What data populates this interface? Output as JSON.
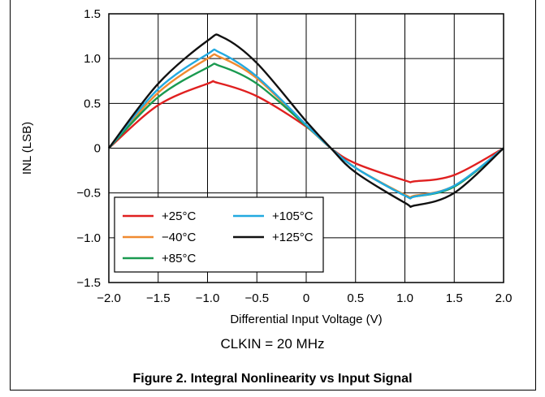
{
  "chart_data": {
    "type": "line",
    "xlabel": "Differential Input Voltage (V)",
    "ylabel": "INL (LSB)",
    "xlim": [
      -2.0,
      2.0
    ],
    "ylim": [
      -1.5,
      1.5
    ],
    "x_ticks": [
      "−2.0",
      "−1.5",
      "−1.0",
      "−0.5",
      "0",
      "0.5",
      "1.0",
      "1.5",
      "2.0"
    ],
    "y_ticks": [
      "1.5",
      "1.0",
      "0.5",
      "0",
      "−0.5",
      "−1.0",
      "−1.5"
    ],
    "grid": true,
    "legend_position": "bottom-left",
    "series": [
      {
        "name": "+25°C",
        "color": "#e02020",
        "x": [
          -2.0,
          -1.5,
          -1.0,
          -0.9,
          -0.5,
          0.0,
          0.25,
          0.5,
          1.0,
          1.1,
          1.5,
          2.0
        ],
        "y": [
          0.0,
          0.48,
          0.72,
          0.73,
          0.58,
          0.24,
          0.0,
          -0.17,
          -0.36,
          -0.37,
          -0.3,
          0.0
        ]
      },
      {
        "name": "−40°C",
        "color": "#f08a30",
        "x": [
          -2.0,
          -1.5,
          -1.0,
          -0.88,
          -0.5,
          0.0,
          0.25,
          0.5,
          1.0,
          1.1,
          1.5,
          2.0
        ],
        "y": [
          0.0,
          0.62,
          1.0,
          1.02,
          0.78,
          0.25,
          0.0,
          -0.22,
          -0.52,
          -0.53,
          -0.42,
          0.0
        ]
      },
      {
        "name": "+85°C",
        "color": "#1a9a50",
        "x": [
          -2.0,
          -1.5,
          -1.0,
          -0.88,
          -0.5,
          0.0,
          0.25,
          0.5,
          1.0,
          1.1,
          1.5,
          2.0
        ],
        "y": [
          0.0,
          0.57,
          0.9,
          0.92,
          0.72,
          0.25,
          0.0,
          -0.22,
          -0.53,
          -0.54,
          -0.43,
          0.0
        ]
      },
      {
        "name": "+105°C",
        "color": "#22a9e0",
        "x": [
          -2.0,
          -1.5,
          -1.0,
          -0.88,
          -0.5,
          0.0,
          0.25,
          0.5,
          1.0,
          1.1,
          1.5,
          2.0
        ],
        "y": [
          0.0,
          0.66,
          1.05,
          1.07,
          0.8,
          0.26,
          0.0,
          -0.22,
          -0.53,
          -0.54,
          -0.42,
          0.0
        ]
      },
      {
        "name": "+125°C",
        "color": "#111111",
        "x": [
          -2.0,
          -1.5,
          -1.0,
          -0.85,
          -0.5,
          0.0,
          0.25,
          0.5,
          1.0,
          1.1,
          1.5,
          2.0
        ],
        "y": [
          0.0,
          0.72,
          1.2,
          1.24,
          0.95,
          0.3,
          0.0,
          -0.27,
          -0.61,
          -0.64,
          -0.5,
          0.0
        ]
      }
    ]
  },
  "note": "CLKIN = 20 MHz",
  "caption": "Figure 2. Integral Nonlinearity vs Input Signal"
}
